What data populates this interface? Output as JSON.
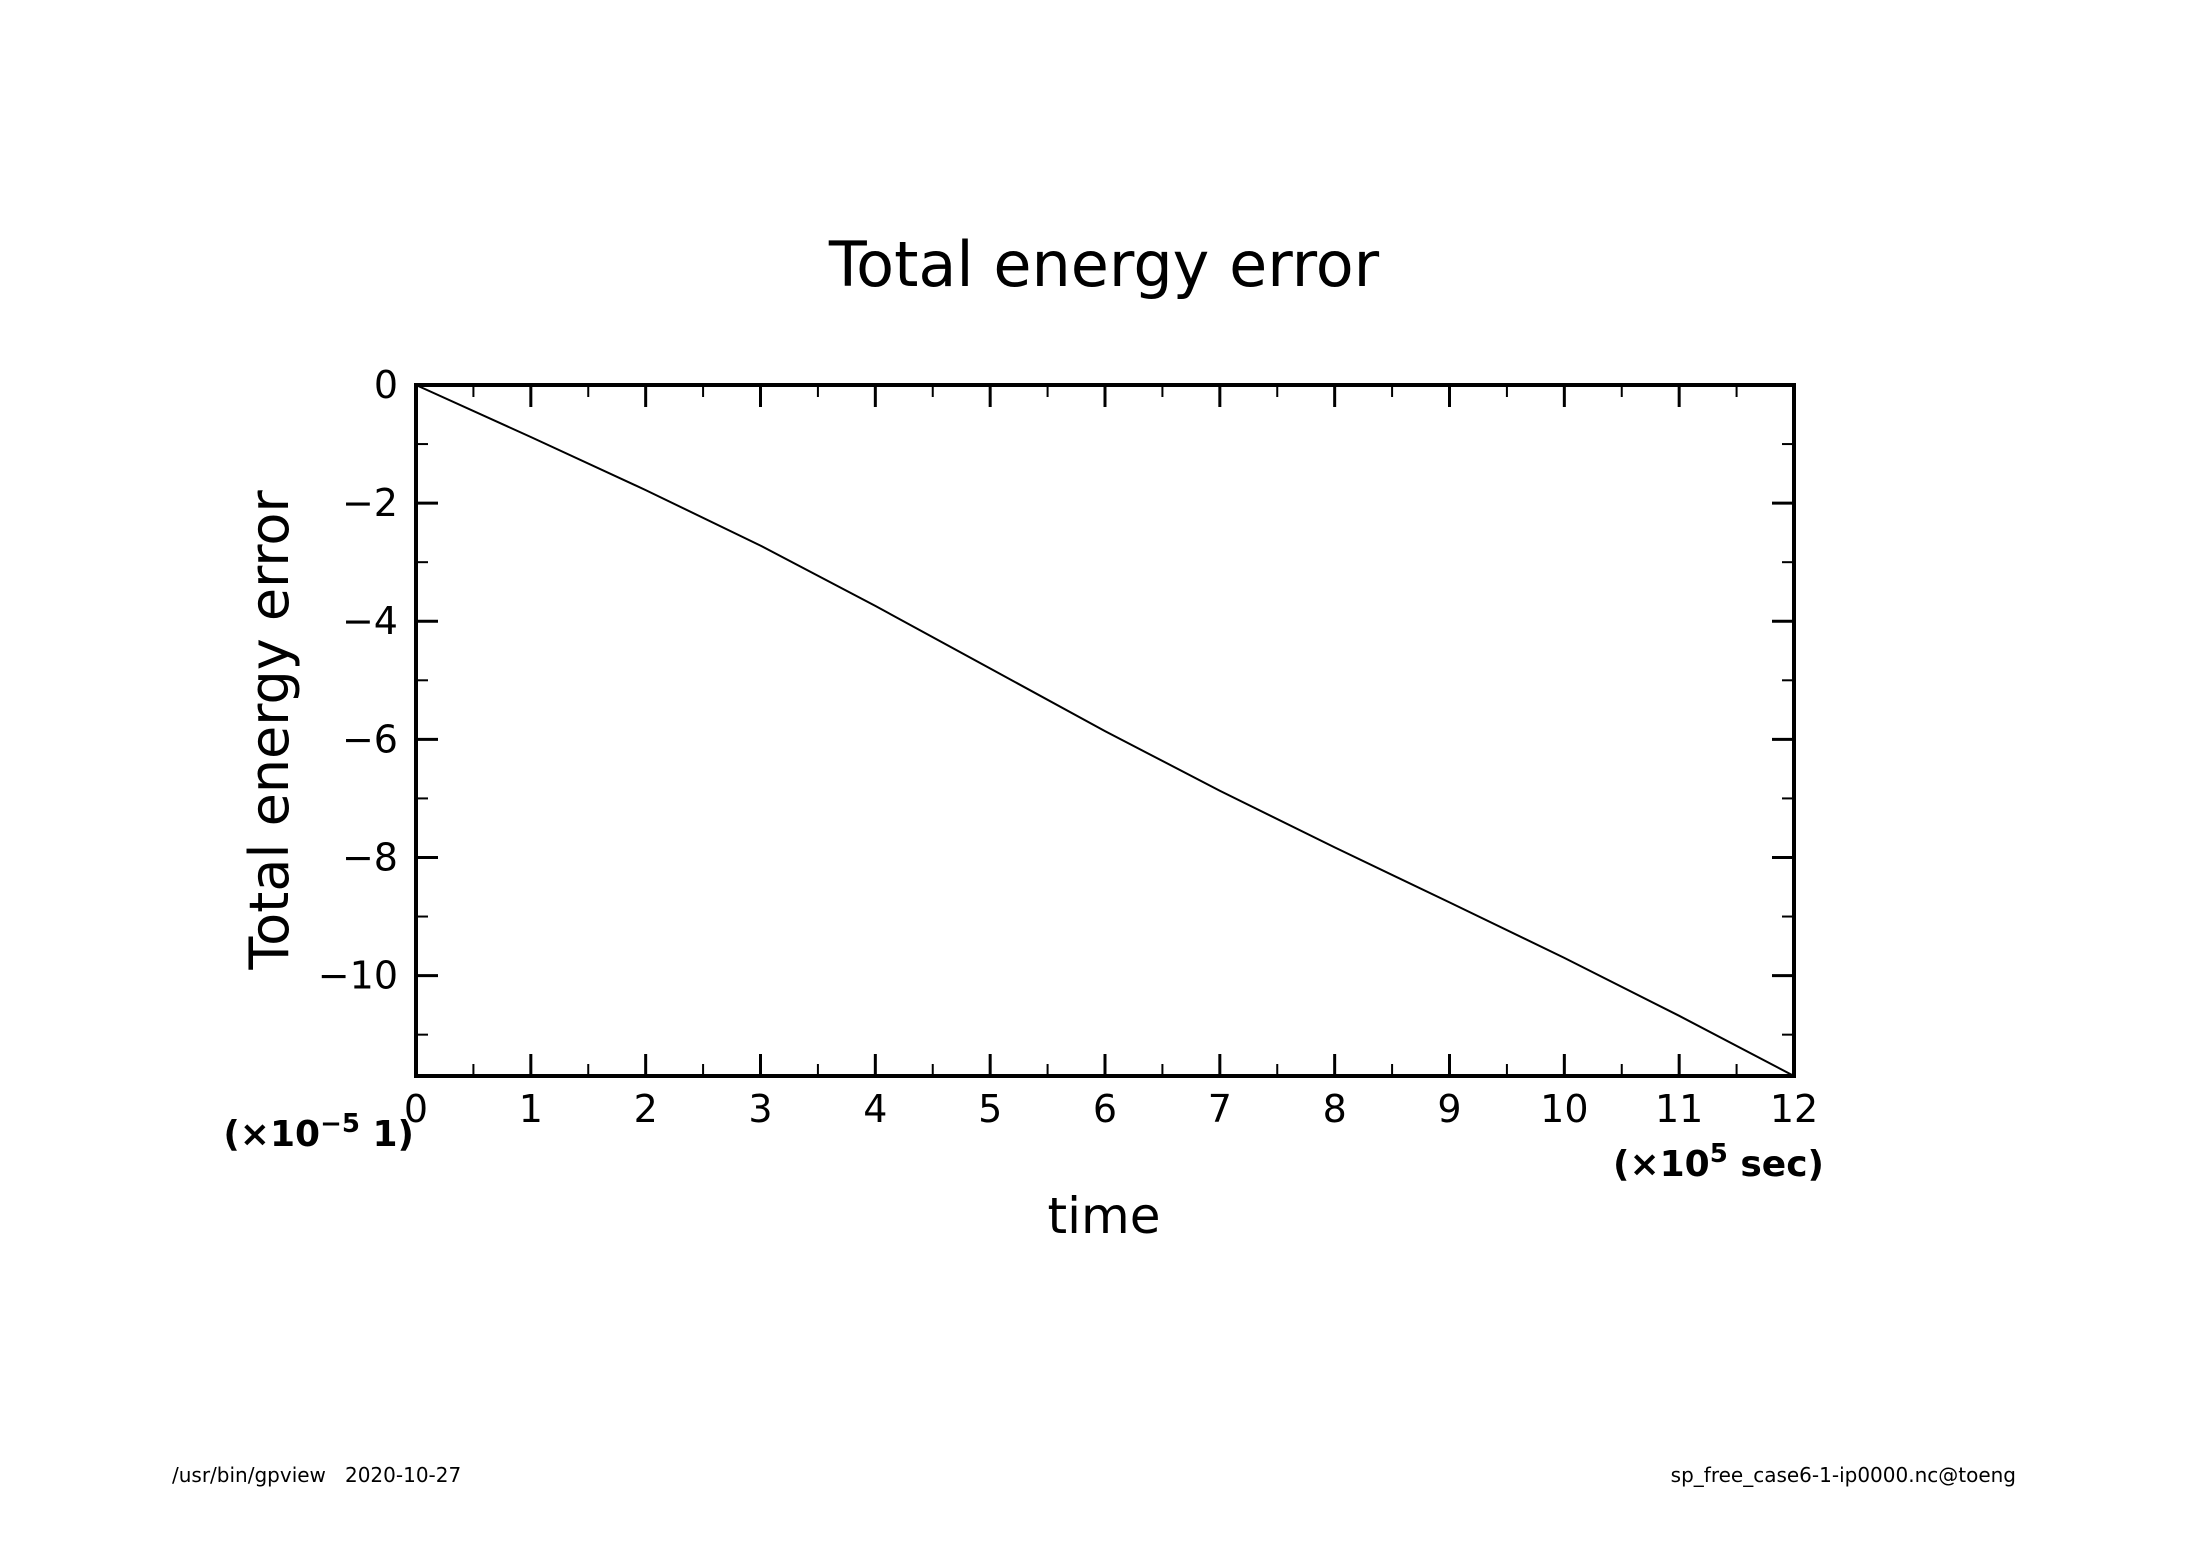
{
  "chart_data": {
    "type": "line",
    "title": "Total energy error",
    "xlabel": "time",
    "ylabel": "Total energy error",
    "x_scale_label": "(×10^5 sec)",
    "x_scale_base": "(×10",
    "x_scale_exp": "5",
    "x_scale_unit": " sec)",
    "y_scale_base": "(×10",
    "y_scale_exp": "−5",
    "y_scale_unit": " 1)",
    "xlim": [
      0,
      12
    ],
    "ylim": [
      -11.7,
      0
    ],
    "x_ticks": [
      0,
      1,
      2,
      3,
      4,
      5,
      6,
      7,
      8,
      9,
      10,
      11,
      12
    ],
    "x_tick_labels": [
      "0",
      "1",
      "2",
      "3",
      "4",
      "5",
      "6",
      "7",
      "8",
      "9",
      "10",
      "11",
      "12"
    ],
    "y_ticks": [
      0,
      -2,
      -4,
      -6,
      -8,
      -10
    ],
    "y_tick_labels": [
      "0",
      "−2",
      "−4",
      "−6",
      "−8",
      "−10"
    ],
    "grid": false,
    "series": [
      {
        "x": [
          0,
          1,
          2,
          3,
          4,
          5,
          6,
          7,
          8,
          9,
          10,
          11,
          12
        ],
        "values": [
          0,
          -0.88,
          -1.78,
          -2.72,
          -3.74,
          -4.8,
          -5.86,
          -6.87,
          -7.83,
          -8.76,
          -9.7,
          -10.68,
          -11.7
        ]
      }
    ]
  },
  "footer": {
    "left": "/usr/bin/gpview   2020-10-27",
    "right": "sp_free_case6-1-ip0000.nc@toeng"
  }
}
